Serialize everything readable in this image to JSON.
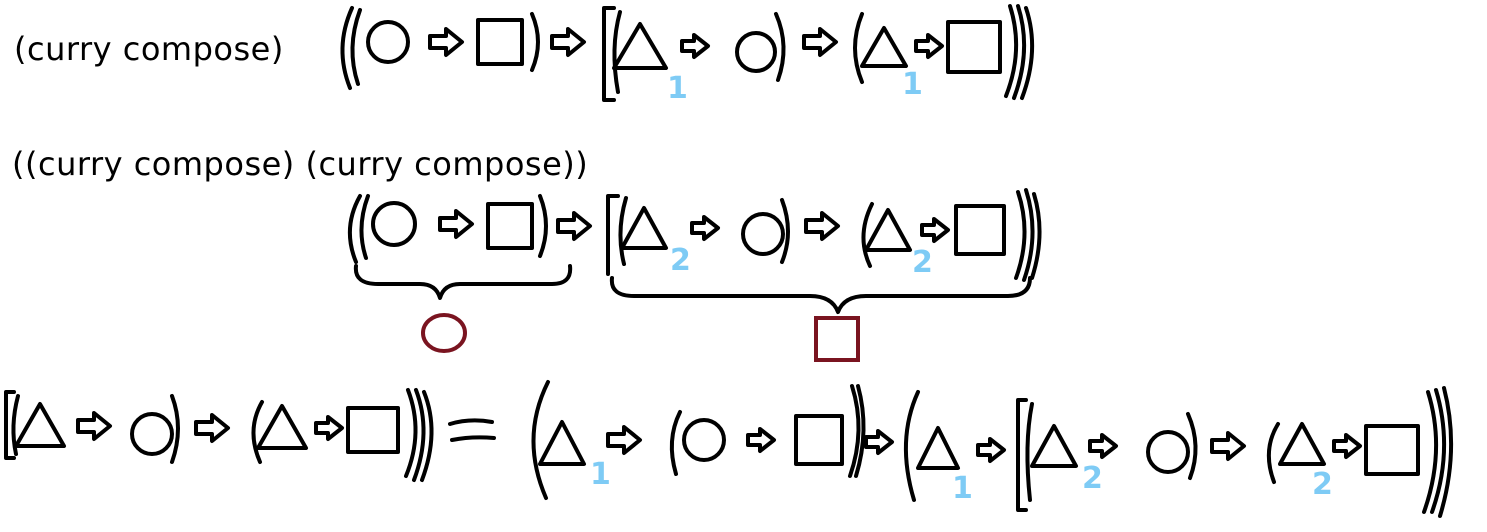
{
  "row1": {
    "expression": "(curry compose)"
  },
  "row2": {
    "expression": "((curry compose) (curry compose))"
  },
  "row3": {
    "equals": "="
  },
  "subscripts": {
    "one": "1",
    "two": "2"
  },
  "colors": {
    "ink": "#000000",
    "subscript": "#7ecbf5",
    "brace_label": "#7a1420"
  }
}
